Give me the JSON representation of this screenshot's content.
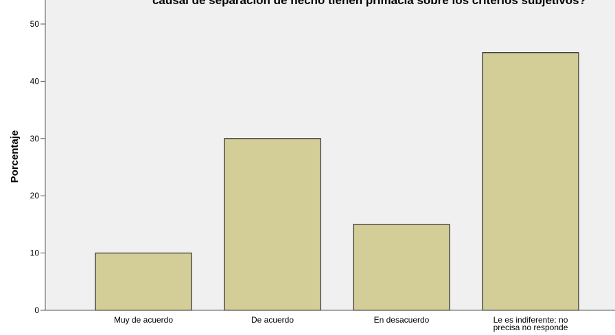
{
  "chart_data": {
    "type": "bar",
    "title": "causal de separación de hecho tienen primacía sobre los criterios subjetivos?",
    "xlabel": "",
    "ylabel": "Porcentaje",
    "categories": [
      "Muy de acuerdo",
      "De acuerdo",
      "En desacuerdo",
      "Le es indiferente: no precisa no responde"
    ],
    "category_lines": [
      [
        "Muy de acuerdo"
      ],
      [
        "De acuerdo"
      ],
      [
        "En desacuerdo"
      ],
      [
        "Le es indiferente: no",
        "precisa no responde"
      ]
    ],
    "values": [
      10,
      30,
      15,
      45
    ],
    "ylim": [
      0,
      50
    ],
    "yticks": [
      0,
      10,
      20,
      30,
      40,
      50
    ],
    "ytick_labels": [
      "0",
      "10",
      "20",
      "30",
      "40",
      "50"
    ],
    "grid": false,
    "legend": "none",
    "colors": {
      "bar_fill": "#d3cd97",
      "bar_stroke": "#2a2a2a",
      "plot_background": "#f0f0f0",
      "axis": "#555555"
    }
  }
}
